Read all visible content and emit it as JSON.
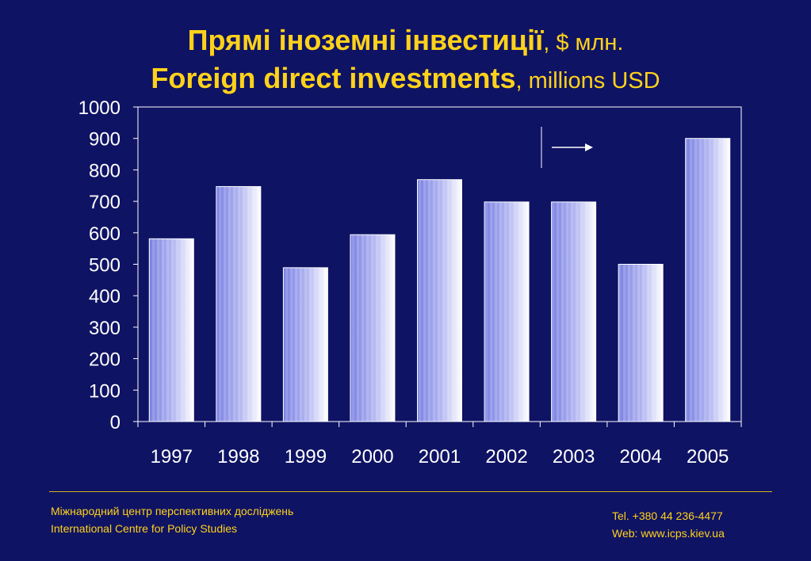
{
  "title": {
    "line1_bold": "Прямі іноземні інвестиції",
    "line1_rest": ", $ млн.",
    "line2_bold": "Foreign direct investments",
    "line2_rest": ", millions USD"
  },
  "footer": {
    "org_ua": "Міжнародний центр перспективних досліджень",
    "org_en": "International Centre for Policy Studies",
    "tel": "Tel. +380 44 236-4477",
    "web": "Web: www.icps.kiev.ua"
  },
  "colors": {
    "background": "#0f1364",
    "title": "#ffd21a",
    "bar_dark": "#7f86e6",
    "bar_light": "#ffffff"
  },
  "chart_data": {
    "type": "bar",
    "categories": [
      "1997",
      "1998",
      "1999",
      "2000",
      "2001",
      "2002",
      "2003",
      "2004",
      "2005"
    ],
    "values": [
      581,
      747,
      489,
      594,
      769,
      698,
      698,
      500,
      900
    ],
    "y_ticks": [
      "0",
      "100",
      "200",
      "300",
      "400",
      "500",
      "600",
      "700",
      "800",
      "900",
      "1000"
    ],
    "ylim": [
      0,
      1000
    ],
    "grid": false,
    "legend": "none",
    "annotation": "arrow pointing right after a vertical divider between 2002 and 2003"
  }
}
